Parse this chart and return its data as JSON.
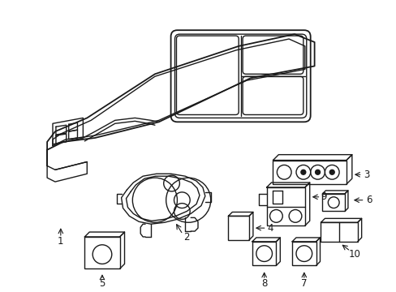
{
  "bg_color": "#ffffff",
  "line_color": "#1a1a1a",
  "line_width": 1.0,
  "fig_width": 4.89,
  "fig_height": 3.6,
  "dpi": 100,
  "label_fontsize": 8.5
}
